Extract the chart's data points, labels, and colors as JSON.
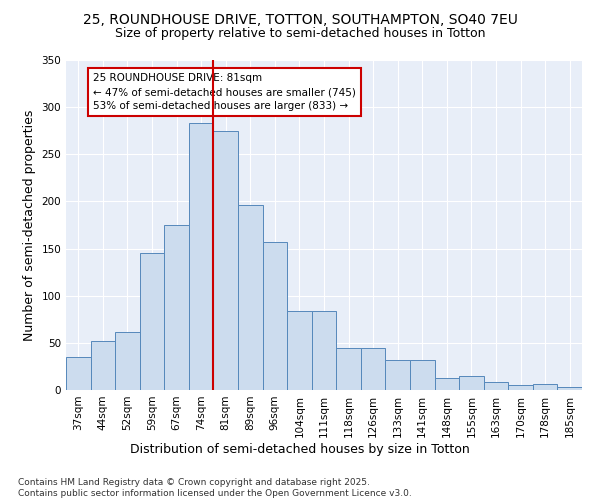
{
  "title_line1": "25, ROUNDHOUSE DRIVE, TOTTON, SOUTHAMPTON, SO40 7EU",
  "title_line2": "Size of property relative to semi-detached houses in Totton",
  "xlabel": "Distribution of semi-detached houses by size in Totton",
  "ylabel": "Number of semi-detached properties",
  "categories": [
    "37sqm",
    "44sqm",
    "52sqm",
    "59sqm",
    "67sqm",
    "74sqm",
    "81sqm",
    "89sqm",
    "96sqm",
    "104sqm",
    "111sqm",
    "118sqm",
    "126sqm",
    "133sqm",
    "141sqm",
    "148sqm",
    "155sqm",
    "163sqm",
    "170sqm",
    "178sqm",
    "185sqm"
  ],
  "values": [
    35,
    52,
    61,
    145,
    175,
    283,
    275,
    196,
    157,
    84,
    84,
    45,
    45,
    32,
    32,
    13,
    15,
    8,
    5,
    6,
    3
  ],
  "bar_color": "#ccdcee",
  "bar_edge_color": "#5588bb",
  "vline_index": 6,
  "vline_color": "#cc0000",
  "annotation_title": "25 ROUNDHOUSE DRIVE: 81sqm",
  "annotation_line1": "← 47% of semi-detached houses are smaller (745)",
  "annotation_line2": "53% of semi-detached houses are larger (833) →",
  "annotation_box_color": "#cc0000",
  "ylim": [
    0,
    350
  ],
  "yticks": [
    0,
    50,
    100,
    150,
    200,
    250,
    300,
    350
  ],
  "background_color": "#e8eef8",
  "grid_color": "#ffffff",
  "footer_line1": "Contains HM Land Registry data © Crown copyright and database right 2025.",
  "footer_line2": "Contains public sector information licensed under the Open Government Licence v3.0.",
  "title_fontsize": 10,
  "subtitle_fontsize": 9,
  "axis_label_fontsize": 9,
  "tick_fontsize": 7.5,
  "annotation_fontsize": 7.5,
  "footer_fontsize": 6.5
}
